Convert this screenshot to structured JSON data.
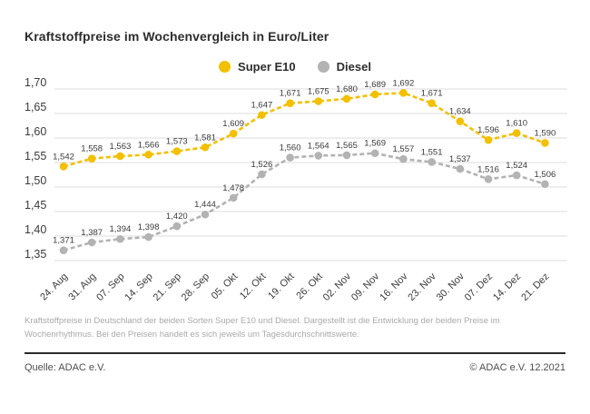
{
  "title": "Kraftstoffpreise im Wochenvergleich in Euro/Liter",
  "chart_data": {
    "type": "line",
    "title": "Kraftstoffpreise im Wochenvergleich in Euro/Liter",
    "categories": [
      "24. Aug",
      "31. Aug",
      "07. Sep",
      "14. Sep",
      "21. Sep",
      "28. Sep",
      "05. Okt",
      "12. Okt",
      "19. Okt",
      "26. Okt",
      "02. Nov",
      "09. Nov",
      "16. Nov",
      "23. Nov",
      "30. Nov",
      "07. Dez",
      "14. Dez",
      "21. Dez"
    ],
    "series": [
      {
        "name": "Super E10",
        "color": "#f3c000",
        "values": [
          1.542,
          1.558,
          1.563,
          1.566,
          1.573,
          1.581,
          1.609,
          1.647,
          1.671,
          1.675,
          1.68,
          1.689,
          1.692,
          1.671,
          1.634,
          1.596,
          1.61,
          1.59
        ]
      },
      {
        "name": "Diesel",
        "color": "#b3b3b3",
        "values": [
          1.371,
          1.387,
          1.394,
          1.398,
          1.42,
          1.444,
          1.478,
          1.526,
          1.56,
          1.564,
          1.565,
          1.569,
          1.557,
          1.551,
          1.537,
          1.516,
          1.524,
          1.506
        ]
      }
    ],
    "ylim": [
      1.35,
      1.7
    ],
    "y_ticks": [
      1.7,
      1.65,
      1.6,
      1.55,
      1.5,
      1.45,
      1.4,
      1.35
    ],
    "grid": true,
    "legend_position": "top-center",
    "xlabel": "",
    "ylabel": "Euro/Liter",
    "value_label_format": "german-comma-3-decimals",
    "y_tick_format": "german-comma-2-decimals",
    "line_style": "dashed"
  },
  "footnote": "Kraftstoffpreise in Deutschland der beiden Sorten Super E10 und Diesel. Dargestellt ist die Entwicklung der beiden Preise im Wochenrhythmus. Bei den Preisen handelt es sich jeweils um Tagesdurchschnittswerte.",
  "source": "Quelle: ADAC e.V.",
  "copyright": "© ADAC e.V. 12.2021"
}
